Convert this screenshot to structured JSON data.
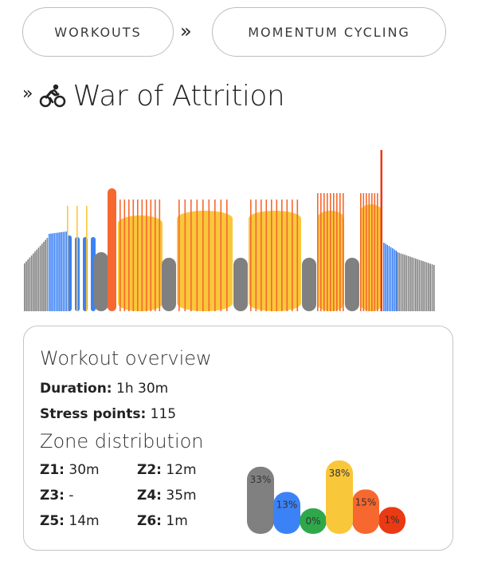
{
  "breadcrumb": {
    "items": [
      {
        "label": "WORKOUTS"
      },
      {
        "label": "MOMENTUM CYCLING"
      }
    ],
    "separator": "»"
  },
  "title": {
    "separator": "»",
    "icon": "cyclist-icon",
    "text": "War of Attrition"
  },
  "colors": {
    "z1": "#808080",
    "z2": "#3b82f6",
    "z3": "#2ea84a",
    "z4": "#f9c73a",
    "z5": "#f6682f",
    "z6": "#ea3a13"
  },
  "overview": {
    "heading": "Workout overview",
    "duration_label": "Duration:",
    "duration_value": "1h 30m",
    "stress_label": "Stress points:",
    "stress_value": "115",
    "zone_heading": "Zone distribution",
    "zones": [
      {
        "label": "Z1:",
        "value": "30m"
      },
      {
        "label": "Z2:",
        "value": "12m"
      },
      {
        "label": "Z3:",
        "value": "-"
      },
      {
        "label": "Z4:",
        "value": "35m"
      },
      {
        "label": "Z5:",
        "value": "14m"
      },
      {
        "label": "Z6:",
        "value": "1m"
      }
    ],
    "distribution": [
      {
        "zone": "Z1",
        "percent": 33,
        "label": "33%"
      },
      {
        "zone": "Z2",
        "percent": 13,
        "label": "13%"
      },
      {
        "zone": "Z3",
        "percent": 0,
        "label": "0%"
      },
      {
        "zone": "Z4",
        "percent": 38,
        "label": "38%"
      },
      {
        "zone": "Z5",
        "percent": 15,
        "label": "15%"
      },
      {
        "zone": "Z6",
        "percent": 1,
        "label": "1%"
      }
    ]
  }
}
